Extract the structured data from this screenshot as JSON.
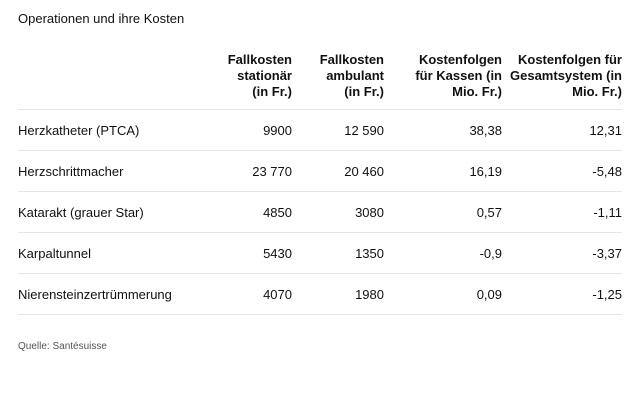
{
  "title": "Operationen und ihre Kosten",
  "headers": [
    [
      ""
    ],
    [
      "Fallkosten",
      "stationär",
      "(in Fr.)"
    ],
    [
      "Fallkosten",
      "ambulant",
      "(in Fr.)"
    ],
    [
      "Kostenfolgen",
      "für Kassen (in",
      "Mio. Fr.)"
    ],
    [
      "Kostenfolgen für",
      "Gesamtsystem (in",
      "Mio. Fr.)"
    ]
  ],
  "rows": [
    [
      "Herzkatheter (PTCA)",
      "9900",
      "12 590",
      "38,38",
      "12,31"
    ],
    [
      "Herzschrittmacher",
      "23 770",
      "20 460",
      "16,19",
      "-5,48"
    ],
    [
      "Katarakt (grauer Star)",
      "4850",
      "3080",
      "0,57",
      "-1,11"
    ],
    [
      "Karpaltunnel",
      "5430",
      "1350",
      "-0,9",
      "-3,37"
    ],
    [
      "Nierensteinzertrümmerung",
      "4070",
      "1980",
      "0,09",
      "-1,25"
    ]
  ],
  "source": "Quelle: Santésuisse"
}
